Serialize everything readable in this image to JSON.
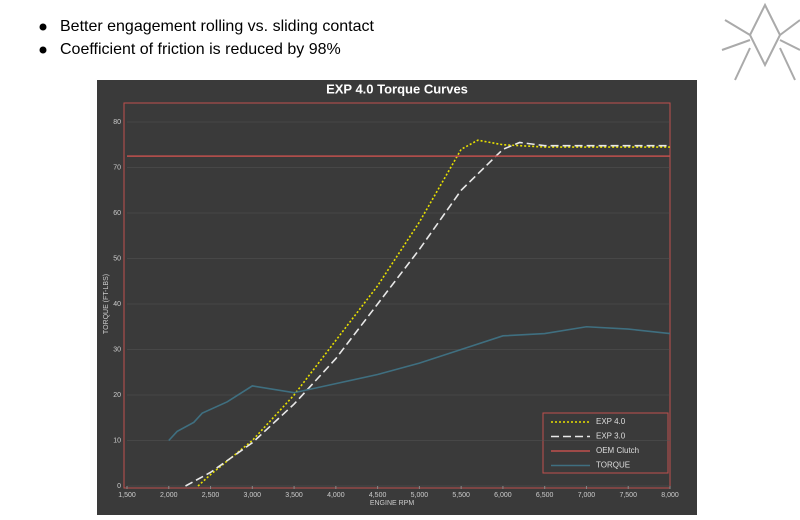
{
  "bullets": [
    "Better engagement rolling vs. sliding contact",
    "Coefficient of friction is reduced by 98%"
  ],
  "chart_data": {
    "type": "line",
    "title": "EXP 4.0 Torque Curves",
    "x_label": "ENGINE RPM",
    "y_label": "TORQUE (FT-LBS)",
    "xlim": [
      1500,
      8000
    ],
    "ylim": [
      0,
      80
    ],
    "xticks": [
      {
        "value": 1500,
        "label": "1,500"
      },
      {
        "value": 2000,
        "label": "2,000"
      },
      {
        "value": 2500,
        "label": "2,500"
      },
      {
        "value": 3000,
        "label": "3,000"
      },
      {
        "value": 3500,
        "label": "3,500"
      },
      {
        "value": 4000,
        "label": "4,000"
      },
      {
        "value": 4500,
        "label": "4,500"
      },
      {
        "value": 5000,
        "label": "5,000"
      },
      {
        "value": 5500,
        "label": "5,500"
      },
      {
        "value": 6000,
        "label": "6,000"
      },
      {
        "value": 6500,
        "label": "6,500"
      },
      {
        "value": 7000,
        "label": "7,000"
      },
      {
        "value": 7500,
        "label": "7,500"
      },
      {
        "value": 8000,
        "label": "8,000"
      }
    ],
    "yticks": [
      0,
      10,
      20,
      30,
      40,
      50,
      60,
      70,
      80
    ],
    "legend": "lower right",
    "series": [
      {
        "name": "EXP 4.0",
        "color": "#e8e000",
        "dash": "dotted",
        "x": [
          2350,
          2500,
          3000,
          3500,
          4000,
          4500,
          5000,
          5500,
          5700,
          6000,
          6500,
          8000
        ],
        "values": [
          0,
          2.5,
          10,
          20,
          32,
          44,
          58,
          74,
          76,
          75,
          74.5,
          74.5
        ]
      },
      {
        "name": "EXP 3.0",
        "color": "#e8e8e8",
        "dash": "dashed",
        "x": [
          2200,
          2500,
          3000,
          3500,
          4000,
          4500,
          5000,
          5500,
          6000,
          6200,
          6500,
          8000
        ],
        "values": [
          0,
          3,
          9.5,
          18,
          28,
          40,
          52,
          65,
          74,
          75.5,
          74.8,
          74.8
        ]
      },
      {
        "name": "OEM Clutch",
        "color": "#c0504d",
        "dash": "solid",
        "x": [
          1500,
          8000
        ],
        "values": [
          72.5,
          72.5
        ]
      },
      {
        "name": "TORQUE",
        "color": "#3f6f80",
        "dash": "solid",
        "x": [
          2000,
          2100,
          2300,
          2400,
          2700,
          3000,
          3500,
          4000,
          4500,
          5000,
          5500,
          6000,
          6500,
          7000,
          7500,
          8000
        ],
        "values": [
          10,
          12,
          14,
          16,
          18.5,
          22,
          20.5,
          22.5,
          24.5,
          27,
          30,
          33,
          33.5,
          35,
          34.5,
          33.5
        ]
      }
    ]
  }
}
